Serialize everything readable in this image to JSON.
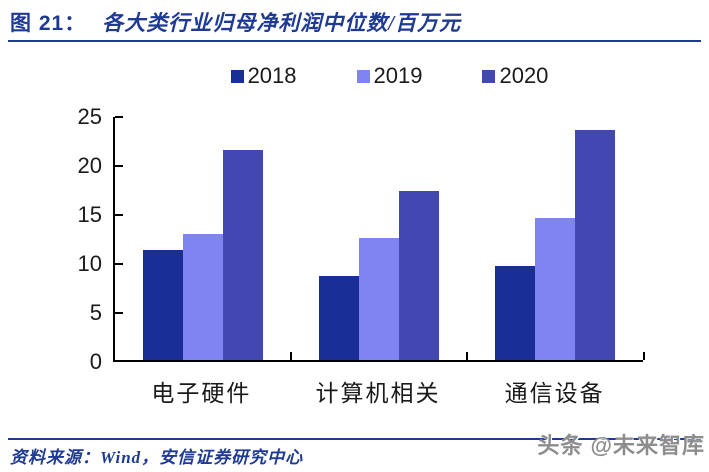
{
  "header": {
    "figure_label": "图 21：",
    "title": "各大类行业归母净利润中位数/百万元"
  },
  "chart_data": {
    "type": "bar",
    "title": "各大类行业归母净利润中位数/百万元",
    "categories": [
      "电子硬件",
      "计算机相关",
      "通信设备"
    ],
    "series": [
      {
        "name": "2018",
        "color": "#1A2E97",
        "values": [
          11.2,
          8.6,
          9.6
        ]
      },
      {
        "name": "2019",
        "color": "#8084F2",
        "values": [
          12.9,
          12.5,
          14.5
        ]
      },
      {
        "name": "2020",
        "color": "#4347B4",
        "values": [
          21.4,
          17.2,
          23.5
        ]
      }
    ],
    "xlabel": "",
    "ylabel": "",
    "ylim": [
      0,
      25
    ],
    "yticks": [
      0,
      5,
      10,
      15,
      20,
      25
    ],
    "grid": false,
    "legend_position": "top"
  },
  "footer": {
    "source": "资料来源：Wind，安信证券研究中心",
    "watermark": "头条 @未来智库"
  },
  "colors": {
    "accent": "#1F3A93",
    "axis": "#000000",
    "series_2018": "#1A2E97",
    "series_2019": "#8084F2",
    "series_2020": "#4347B4",
    "watermark_gray": "#8d8d8d"
  }
}
